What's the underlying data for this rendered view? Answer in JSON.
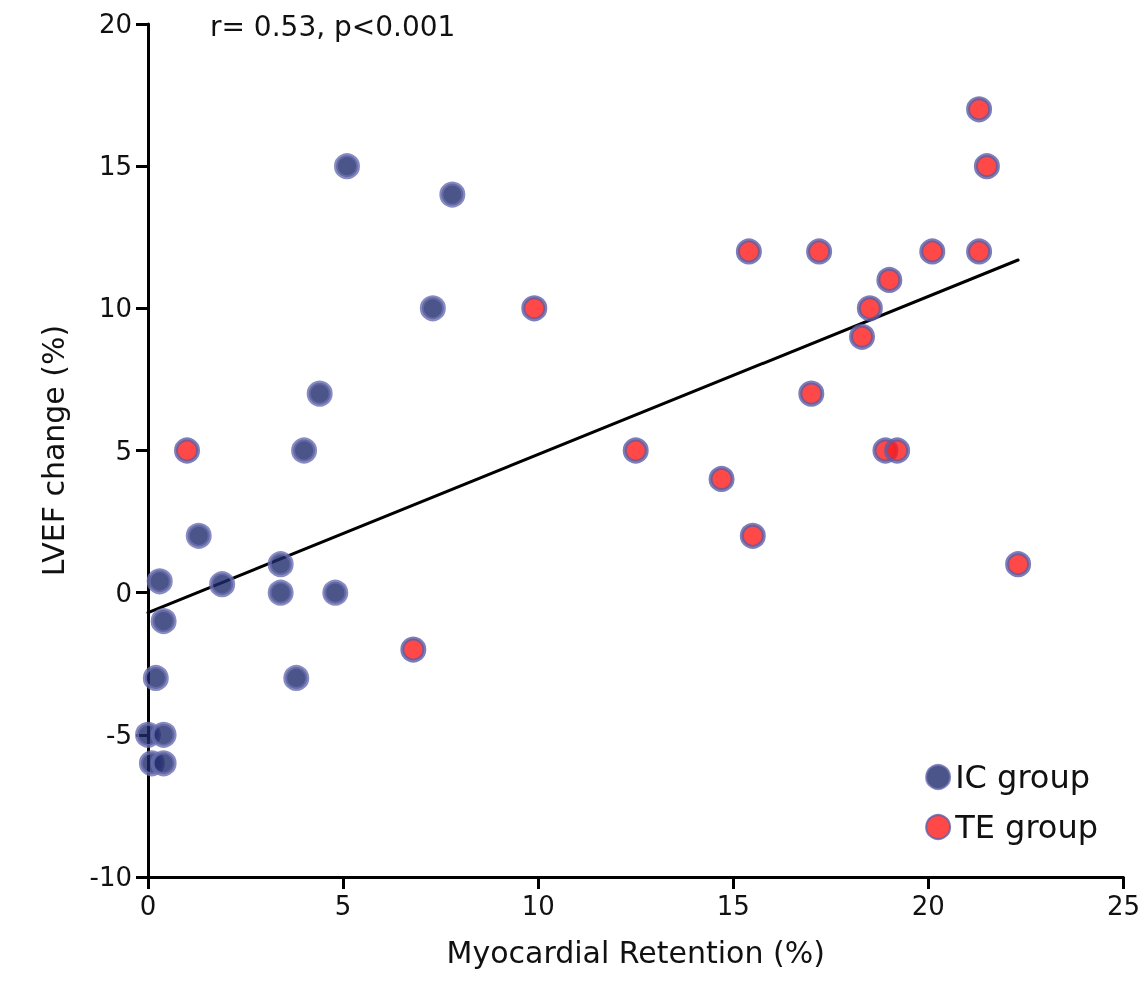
{
  "chart_data": {
    "type": "scatter",
    "xlabel": "Myocardial Retention (%)",
    "ylabel": "LVEF change (%)",
    "annotations": [
      "r= 0.53, p<0.001"
    ],
    "xlim": [
      0,
      25
    ],
    "xticks": [
      0,
      5,
      10,
      15,
      20,
      25
    ],
    "ylim": [
      -10,
      20
    ],
    "yticks": [
      -10,
      -5,
      0,
      5,
      10,
      15,
      20
    ],
    "grid": false,
    "legend": "bottom right",
    "marker": "circle",
    "series": [
      {
        "name": "IC group",
        "color": "#1f2a6b",
        "x": [
          5.1,
          7.8,
          7.3,
          4.4,
          4.0,
          1.3,
          3.4,
          0.3,
          1.9,
          3.4,
          4.8,
          0.4,
          3.8,
          0.2,
          0.0,
          0.4,
          0.1,
          0.4
        ],
        "values": [
          15,
          14,
          10,
          7,
          5,
          2,
          1,
          0.4,
          0.3,
          0,
          0,
          -1,
          -3,
          -3,
          -5,
          -5,
          -6,
          -6
        ]
      },
      {
        "name": "TE group",
        "color": "#ff1a1a",
        "x": [
          1.0,
          9.9,
          6.8,
          12.5,
          14.7,
          15.4,
          15.5,
          17.2,
          17.0,
          18.3,
          18.5,
          19.0,
          18.9,
          19.2,
          20.1,
          21.3,
          21.3,
          21.5,
          22.3
        ],
        "values": [
          5,
          10,
          -2,
          5,
          4,
          12,
          2,
          12,
          7,
          9,
          10,
          11,
          5,
          5,
          12,
          12,
          17,
          15,
          1
        ]
      },
      {
        "type": "line",
        "color": "#000000",
        "marker": "none",
        "line_style": "solid",
        "x": [
          0,
          22.3
        ],
        "values": [
          -0.7,
          11.7
        ]
      }
    ]
  }
}
